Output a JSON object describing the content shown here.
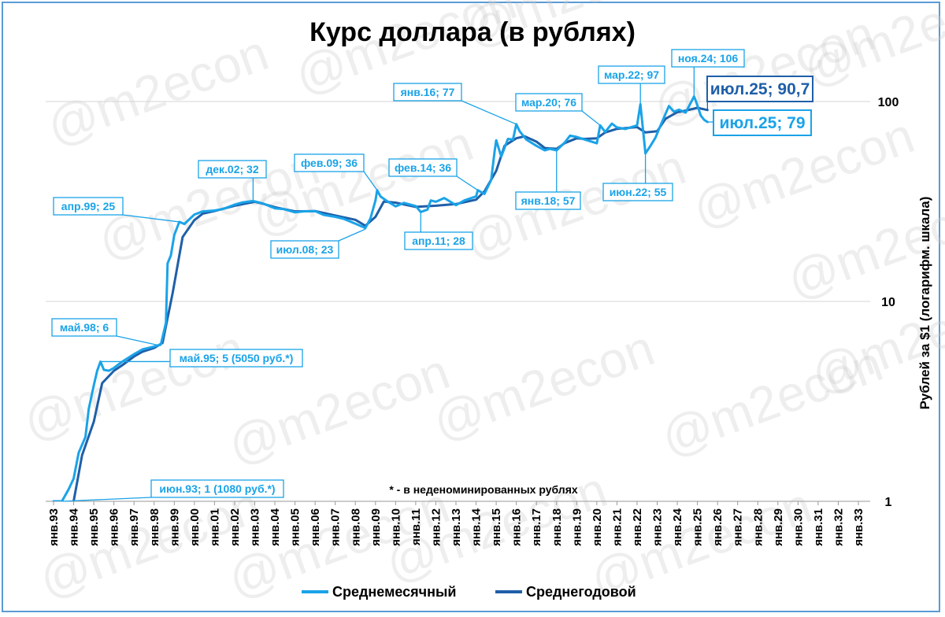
{
  "chart_data": {
    "type": "line",
    "title": "Курс доллара (в рублях)",
    "ylabel": "Рублей за $1 (логарифм. шкала)",
    "y_scale": "log",
    "ylim": [
      1,
      150
    ],
    "y_ticks": [
      "1",
      "10",
      "100"
    ],
    "grid": "horizontal",
    "legend_position": "bottom",
    "x_categories": [
      "янв.93",
      "янв.94",
      "янв.95",
      "янв.96",
      "янв.97",
      "янв.98",
      "янв.99",
      "янв.00",
      "янв.01",
      "янв.02",
      "янв.03",
      "янв.04",
      "янв.05",
      "янв.06",
      "янв.07",
      "янв.08",
      "янв.09",
      "янв.10",
      "янв.11",
      "янв.12",
      "янв.13",
      "янв.14",
      "янв.15",
      "янв.16",
      "янв.17",
      "янв.18",
      "янв.19",
      "янв.20",
      "янв.21",
      "янв.22",
      "янв.23",
      "янв.24",
      "янв.25",
      "янв.26",
      "янв.27",
      "янв.28",
      "янв.29",
      "янв.30",
      "янв.31",
      "янв.32",
      "янв.33"
    ],
    "note": "* - в неденоминированных рублях",
    "watermark": "@m2econ",
    "series": [
      {
        "name": "Среднемесячный",
        "color": "#1aa3e8",
        "points": [
          [
            "1993-01",
            1.0
          ],
          [
            "1993-06",
            1.0
          ],
          [
            "1993-10",
            1.15
          ],
          [
            "1994-01",
            1.3
          ],
          [
            "1994-04",
            1.75
          ],
          [
            "1994-08",
            2.1
          ],
          [
            "1994-10",
            2.9
          ],
          [
            "1995-01",
            3.8
          ],
          [
            "1995-03",
            4.5
          ],
          [
            "1995-05",
            5.0
          ],
          [
            "1995-07",
            4.55
          ],
          [
            "1995-10",
            4.5
          ],
          [
            "1996-01",
            4.65
          ],
          [
            "1996-06",
            5.0
          ],
          [
            "1997-01",
            5.45
          ],
          [
            "1997-06",
            5.75
          ],
          [
            "1998-01",
            5.95
          ],
          [
            "1998-05",
            6.1
          ],
          [
            "1998-08",
            7.8
          ],
          [
            "1998-09",
            15.5
          ],
          [
            "1998-11",
            17.0
          ],
          [
            "1999-01",
            21.5
          ],
          [
            "1999-04",
            25.0
          ],
          [
            "1999-07",
            24.4
          ],
          [
            "2000-01",
            27.2
          ],
          [
            "2000-06",
            28.2
          ],
          [
            "2001-01",
            28.5
          ],
          [
            "2001-06",
            29.0
          ],
          [
            "2002-01",
            30.5
          ],
          [
            "2002-06",
            31.3
          ],
          [
            "2002-12",
            31.8
          ],
          [
            "2003-06",
            30.9
          ],
          [
            "2004-01",
            29.2
          ],
          [
            "2004-06",
            29.0
          ],
          [
            "2005-01",
            27.9
          ],
          [
            "2005-06",
            28.2
          ],
          [
            "2006-01",
            28.3
          ],
          [
            "2006-06",
            27.1
          ],
          [
            "2007-01",
            26.5
          ],
          [
            "2007-06",
            25.9
          ],
          [
            "2008-01",
            24.5
          ],
          [
            "2008-07",
            23.3
          ],
          [
            "2008-10",
            26.0
          ],
          [
            "2009-01",
            32.0
          ],
          [
            "2009-02",
            36.0
          ],
          [
            "2009-04",
            33.5
          ],
          [
            "2009-08",
            31.7
          ],
          [
            "2010-01",
            29.9
          ],
          [
            "2010-06",
            31.1
          ],
          [
            "2011-01",
            30.0
          ],
          [
            "2011-04",
            28.0
          ],
          [
            "2011-08",
            28.8
          ],
          [
            "2011-10",
            32.0
          ],
          [
            "2012-01",
            31.5
          ],
          [
            "2012-06",
            32.9
          ],
          [
            "2013-01",
            30.3
          ],
          [
            "2013-06",
            32.0
          ],
          [
            "2014-01",
            33.5
          ],
          [
            "2014-02",
            36.0
          ],
          [
            "2014-06",
            34.5
          ],
          [
            "2014-10",
            40.5
          ],
          [
            "2014-12",
            56.0
          ],
          [
            "2015-01",
            64.0
          ],
          [
            "2015-04",
            53.0
          ],
          [
            "2015-08",
            65.0
          ],
          [
            "2015-11",
            64.5
          ],
          [
            "2016-01",
            77.0
          ],
          [
            "2016-03",
            71.0
          ],
          [
            "2016-07",
            64.5
          ],
          [
            "2017-01",
            60.0
          ],
          [
            "2017-06",
            57.0
          ],
          [
            "2017-09",
            58.0
          ],
          [
            "2018-01",
            57.0
          ],
          [
            "2018-06",
            62.5
          ],
          [
            "2018-09",
            67.5
          ],
          [
            "2019-01",
            66.5
          ],
          [
            "2019-06",
            64.5
          ],
          [
            "2020-01",
            61.8
          ],
          [
            "2020-03",
            76.0
          ],
          [
            "2020-06",
            70.4
          ],
          [
            "2020-10",
            77.5
          ],
          [
            "2021-01",
            74.2
          ],
          [
            "2021-06",
            72.9
          ],
          [
            "2022-01",
            76.0
          ],
          [
            "2022-03",
            97.0
          ],
          [
            "2022-06",
            55.0
          ],
          [
            "2022-09",
            60.0
          ],
          [
            "2022-12",
            66.0
          ],
          [
            "2023-03",
            76.0
          ],
          [
            "2023-08",
            95.0
          ],
          [
            "2023-11",
            89.0
          ],
          [
            "2024-02",
            91.0
          ],
          [
            "2024-06",
            88.0
          ],
          [
            "2024-11",
            106.0
          ],
          [
            "2024-12",
            101.0
          ],
          [
            "2025-03",
            85.0
          ],
          [
            "2025-05",
            81.0
          ],
          [
            "2025-07",
            79.0
          ]
        ]
      },
      {
        "name": "Среднегодовой",
        "color": "#1f5fa8",
        "points": [
          [
            "1994-01",
            1.0
          ],
          [
            "1994-06",
            1.7
          ],
          [
            "1995-01",
            2.5
          ],
          [
            "1995-06",
            3.9
          ],
          [
            "1996-01",
            4.5
          ],
          [
            "1996-06",
            4.8
          ],
          [
            "1997-01",
            5.3
          ],
          [
            "1997-06",
            5.6
          ],
          [
            "1998-01",
            5.85
          ],
          [
            "1998-06",
            6.2
          ],
          [
            "1998-12",
            11.0
          ],
          [
            "1999-06",
            21.0
          ],
          [
            "2000-01",
            25.5
          ],
          [
            "2000-06",
            27.5
          ],
          [
            "2001-01",
            28.3
          ],
          [
            "2002-01",
            30.1
          ],
          [
            "2003-01",
            31.5
          ],
          [
            "2003-06",
            30.8
          ],
          [
            "2004-01",
            29.6
          ],
          [
            "2005-01",
            28.2
          ],
          [
            "2006-01",
            28.3
          ],
          [
            "2007-01",
            26.9
          ],
          [
            "2008-01",
            25.6
          ],
          [
            "2008-07",
            23.9
          ],
          [
            "2009-01",
            26.5
          ],
          [
            "2009-06",
            31.6
          ],
          [
            "2010-01",
            31.2
          ],
          [
            "2011-01",
            29.7
          ],
          [
            "2012-01",
            30.1
          ],
          [
            "2013-01",
            30.7
          ],
          [
            "2014-01",
            32.3
          ],
          [
            "2014-06",
            35.5
          ],
          [
            "2015-01",
            45.0
          ],
          [
            "2015-06",
            60.0
          ],
          [
            "2016-01",
            65.5
          ],
          [
            "2016-06",
            67.0
          ],
          [
            "2017-01",
            63.0
          ],
          [
            "2017-06",
            58.5
          ],
          [
            "2018-01",
            58.0
          ],
          [
            "2018-06",
            62.0
          ],
          [
            "2019-01",
            65.5
          ],
          [
            "2019-06",
            65.0
          ],
          [
            "2020-01",
            65.5
          ],
          [
            "2020-06",
            70.0
          ],
          [
            "2021-01",
            73.0
          ],
          [
            "2022-01",
            74.5
          ],
          [
            "2022-06",
            70.0
          ],
          [
            "2023-01",
            71.0
          ],
          [
            "2023-06",
            82.0
          ],
          [
            "2024-01",
            88.5
          ],
          [
            "2024-06",
            90.0
          ],
          [
            "2025-01",
            93.0
          ],
          [
            "2025-07",
            90.7
          ]
        ]
      }
    ],
    "annotations": [
      {
        "text": "июн.93; 1 (1080 руб.*)",
        "date": "1993-06",
        "value": 1.0,
        "series": "Среднемесячный"
      },
      {
        "text": "май.95; 5 (5050 руб.*)",
        "date": "1995-05",
        "value": 5.0,
        "series": "Среднемесячный"
      },
      {
        "text": "май.98; 6",
        "date": "1998-05",
        "value": 6.0,
        "series": "Среднемесячный"
      },
      {
        "text": "апр.99; 25",
        "date": "1999-04",
        "value": 25.0,
        "series": "Среднемесячный"
      },
      {
        "text": "дек.02; 32",
        "date": "2002-12",
        "value": 32.0,
        "series": "Среднемесячный"
      },
      {
        "text": "июл.08; 23",
        "date": "2008-07",
        "value": 23.0,
        "series": "Среднемесячный"
      },
      {
        "text": "фев.09; 36",
        "date": "2009-02",
        "value": 36.0,
        "series": "Среднемесячный"
      },
      {
        "text": "апр.11; 28",
        "date": "2011-04",
        "value": 28.0,
        "series": "Среднемесячный"
      },
      {
        "text": "фев.14; 36",
        "date": "2014-02",
        "value": 36.0,
        "series": "Среднемесячный"
      },
      {
        "text": "янв.16; 77",
        "date": "2016-01",
        "value": 77.0,
        "series": "Среднемесячный"
      },
      {
        "text": "янв.18; 57",
        "date": "2018-01",
        "value": 57.0,
        "series": "Среднемесячный"
      },
      {
        "text": "мар.20; 76",
        "date": "2020-03",
        "value": 76.0,
        "series": "Среднемесячный"
      },
      {
        "text": "мар.22; 97",
        "date": "2022-03",
        "value": 97.0,
        "series": "Среднемесячный"
      },
      {
        "text": "июн.22; 55",
        "date": "2022-06",
        "value": 55.0,
        "series": "Среднемесячный"
      },
      {
        "text": "ноя.24; 106",
        "date": "2024-11",
        "value": 106.0,
        "series": "Среднемесячный"
      },
      {
        "text": "июл.25; 90,7",
        "date": "2025-07",
        "value": 90.7,
        "series": "Среднегодовой"
      },
      {
        "text": "июл.25; 79",
        "date": "2025-07",
        "value": 79.0,
        "series": "Среднемесячный"
      }
    ]
  }
}
